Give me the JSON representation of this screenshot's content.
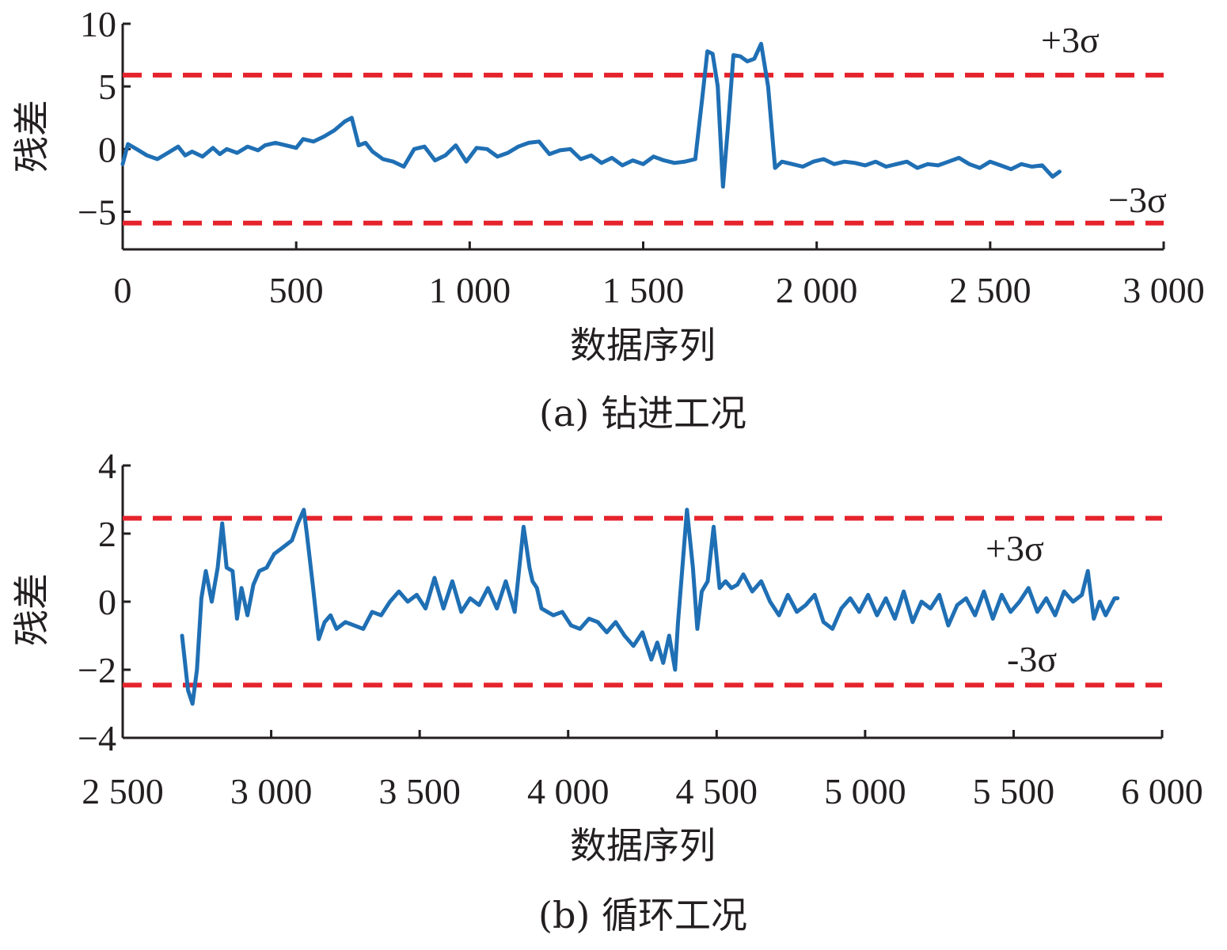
{
  "chart_data": [
    {
      "id": "a",
      "type": "line",
      "caption": "(a) 钻进工况",
      "xlabel": "数据序列",
      "ylabel": "残差",
      "xlim": [
        0,
        3000
      ],
      "ylim": [
        -8,
        10
      ],
      "x_ticks": [
        0,
        500,
        1000,
        1500,
        2000,
        2500,
        3000
      ],
      "x_tick_labels": [
        "0",
        "500",
        "1 000",
        "1 500",
        "2 000",
        "2 500",
        "3 000"
      ],
      "y_ticks": [
        -5,
        0,
        5,
        10
      ],
      "y_tick_labels": [
        "−5",
        "0",
        "5",
        "10"
      ],
      "grid": false,
      "thresholds": [
        {
          "label": "+3σ",
          "value": 5.9
        },
        {
          "label": "−3σ",
          "value": -5.9
        }
      ],
      "series": [
        {
          "color": "#1f6fb4",
          "x": [
            0,
            15,
            40,
            70,
            100,
            130,
            160,
            180,
            200,
            230,
            260,
            280,
            300,
            330,
            360,
            390,
            410,
            440,
            470,
            500,
            520,
            550,
            580,
            610,
            640,
            660,
            680,
            700,
            720,
            750,
            780,
            810,
            840,
            870,
            900,
            930,
            960,
            990,
            1020,
            1050,
            1080,
            1110,
            1140,
            1170,
            1200,
            1230,
            1260,
            1290,
            1320,
            1350,
            1380,
            1410,
            1440,
            1470,
            1500,
            1530,
            1560,
            1590,
            1620,
            1650,
            1670,
            1685,
            1700,
            1715,
            1730,
            1745,
            1760,
            1780,
            1800,
            1820,
            1840,
            1860,
            1880,
            1900,
            1930,
            1960,
            1990,
            2020,
            2050,
            2080,
            2110,
            2140,
            2170,
            2200,
            2230,
            2260,
            2290,
            2320,
            2350,
            2380,
            2410,
            2440,
            2470,
            2500,
            2530,
            2560,
            2590,
            2620,
            2650,
            2680,
            2700
          ],
          "y": [
            -1.2,
            0.4,
            0.0,
            -0.5,
            -0.8,
            -0.3,
            0.2,
            -0.5,
            -0.2,
            -0.6,
            0.1,
            -0.4,
            0.0,
            -0.3,
            0.2,
            -0.1,
            0.3,
            0.5,
            0.3,
            0.1,
            0.8,
            0.6,
            1.0,
            1.5,
            2.2,
            2.5,
            0.3,
            0.5,
            -0.2,
            -0.8,
            -1.0,
            -1.4,
            0.0,
            0.2,
            -0.9,
            -0.5,
            0.3,
            -1.0,
            0.1,
            0.0,
            -0.6,
            -0.3,
            0.2,
            0.5,
            0.6,
            -0.4,
            -0.1,
            0.0,
            -0.8,
            -0.5,
            -1.1,
            -0.7,
            -1.3,
            -0.9,
            -1.2,
            -0.6,
            -0.9,
            -1.1,
            -1.0,
            -0.8,
            4.0,
            7.8,
            7.6,
            5.0,
            -3.0,
            2.0,
            7.5,
            7.4,
            7.0,
            7.2,
            8.4,
            5.0,
            -1.5,
            -1.0,
            -1.2,
            -1.4,
            -1.0,
            -0.8,
            -1.2,
            -1.0,
            -1.1,
            -1.3,
            -1.0,
            -1.4,
            -1.2,
            -1.0,
            -1.5,
            -1.2,
            -1.3,
            -1.0,
            -0.7,
            -1.2,
            -1.5,
            -1.0,
            -1.3,
            -1.6,
            -1.2,
            -1.4,
            -1.3,
            -2.2,
            -1.8
          ]
        }
      ]
    },
    {
      "id": "b",
      "type": "line",
      "caption": "(b) 循环工况",
      "xlabel": "数据序列",
      "ylabel": "残差",
      "xlim": [
        2500,
        6000
      ],
      "ylim": [
        -4,
        4
      ],
      "x_ticks": [
        2500,
        3000,
        3500,
        4000,
        4500,
        5000,
        5500,
        6000
      ],
      "x_tick_labels": [
        "2 500",
        "3 000",
        "3 500",
        "4 000",
        "4 500",
        "5 000",
        "5 500",
        "6 000"
      ],
      "y_ticks": [
        -4,
        -2,
        0,
        2,
        4
      ],
      "y_tick_labels": [
        "−4",
        "−2",
        "0",
        "2",
        "4"
      ],
      "grid": false,
      "thresholds": [
        {
          "label": "+3σ",
          "value": 2.45
        },
        {
          "label": "-3σ",
          "value": -2.45
        }
      ],
      "series": [
        {
          "color": "#1f6fb4",
          "x": [
            2700,
            2720,
            2735,
            2750,
            2765,
            2780,
            2800,
            2820,
            2835,
            2850,
            2870,
            2885,
            2900,
            2920,
            2940,
            2960,
            2985,
            3010,
            3040,
            3070,
            3090,
            3110,
            3120,
            3140,
            3160,
            3180,
            3200,
            3220,
            3250,
            3280,
            3310,
            3340,
            3370,
            3400,
            3430,
            3460,
            3490,
            3520,
            3550,
            3580,
            3610,
            3640,
            3670,
            3700,
            3730,
            3760,
            3790,
            3820,
            3850,
            3870,
            3880,
            3895,
            3910,
            3930,
            3950,
            3980,
            4010,
            4040,
            4070,
            4100,
            4130,
            4160,
            4190,
            4220,
            4250,
            4280,
            4300,
            4320,
            4340,
            4360,
            4370,
            4380,
            4400,
            4420,
            4435,
            4450,
            4470,
            4490,
            4510,
            4530,
            4550,
            4570,
            4590,
            4620,
            4650,
            4680,
            4710,
            4740,
            4770,
            4800,
            4830,
            4860,
            4890,
            4920,
            4950,
            4980,
            5010,
            5040,
            5070,
            5100,
            5130,
            5160,
            5190,
            5220,
            5250,
            5280,
            5310,
            5340,
            5370,
            5400,
            5430,
            5460,
            5490,
            5520,
            5550,
            5580,
            5610,
            5640,
            5670,
            5700,
            5730,
            5750,
            5770,
            5790,
            5810,
            5840,
            5850
          ],
          "y": [
            -1.0,
            -2.6,
            -3.0,
            -2.0,
            0.1,
            0.9,
            0.0,
            1.0,
            2.3,
            1.0,
            0.9,
            -0.5,
            0.4,
            -0.4,
            0.5,
            0.9,
            1.0,
            1.4,
            1.6,
            1.8,
            2.3,
            2.7,
            2.0,
            0.5,
            -1.1,
            -0.6,
            -0.4,
            -0.8,
            -0.6,
            -0.7,
            -0.8,
            -0.3,
            -0.4,
            0.0,
            0.3,
            0.0,
            0.2,
            -0.2,
            0.7,
            -0.2,
            0.6,
            -0.3,
            0.1,
            -0.1,
            0.4,
            -0.2,
            0.6,
            -0.3,
            2.2,
            1.0,
            0.6,
            0.4,
            -0.2,
            -0.3,
            -0.4,
            -0.3,
            -0.7,
            -0.8,
            -0.5,
            -0.6,
            -0.9,
            -0.6,
            -1.0,
            -1.3,
            -0.9,
            -1.7,
            -1.2,
            -1.8,
            -1.0,
            -2.0,
            -0.6,
            0.5,
            2.7,
            1.0,
            -0.8,
            0.3,
            0.6,
            2.2,
            0.4,
            0.6,
            0.4,
            0.5,
            0.8,
            0.3,
            0.6,
            0.0,
            -0.4,
            0.2,
            -0.3,
            -0.1,
            0.2,
            -0.6,
            -0.8,
            -0.2,
            0.1,
            -0.3,
            0.2,
            -0.4,
            0.1,
            -0.5,
            0.3,
            -0.6,
            0.0,
            -0.2,
            0.2,
            -0.7,
            -0.1,
            0.1,
            -0.4,
            0.3,
            -0.5,
            0.2,
            -0.3,
            0.0,
            0.4,
            -0.3,
            0.1,
            -0.4,
            0.3,
            0.0,
            0.2,
            0.9,
            -0.5,
            0.0,
            -0.4,
            0.1,
            0.1
          ]
        }
      ]
    }
  ]
}
